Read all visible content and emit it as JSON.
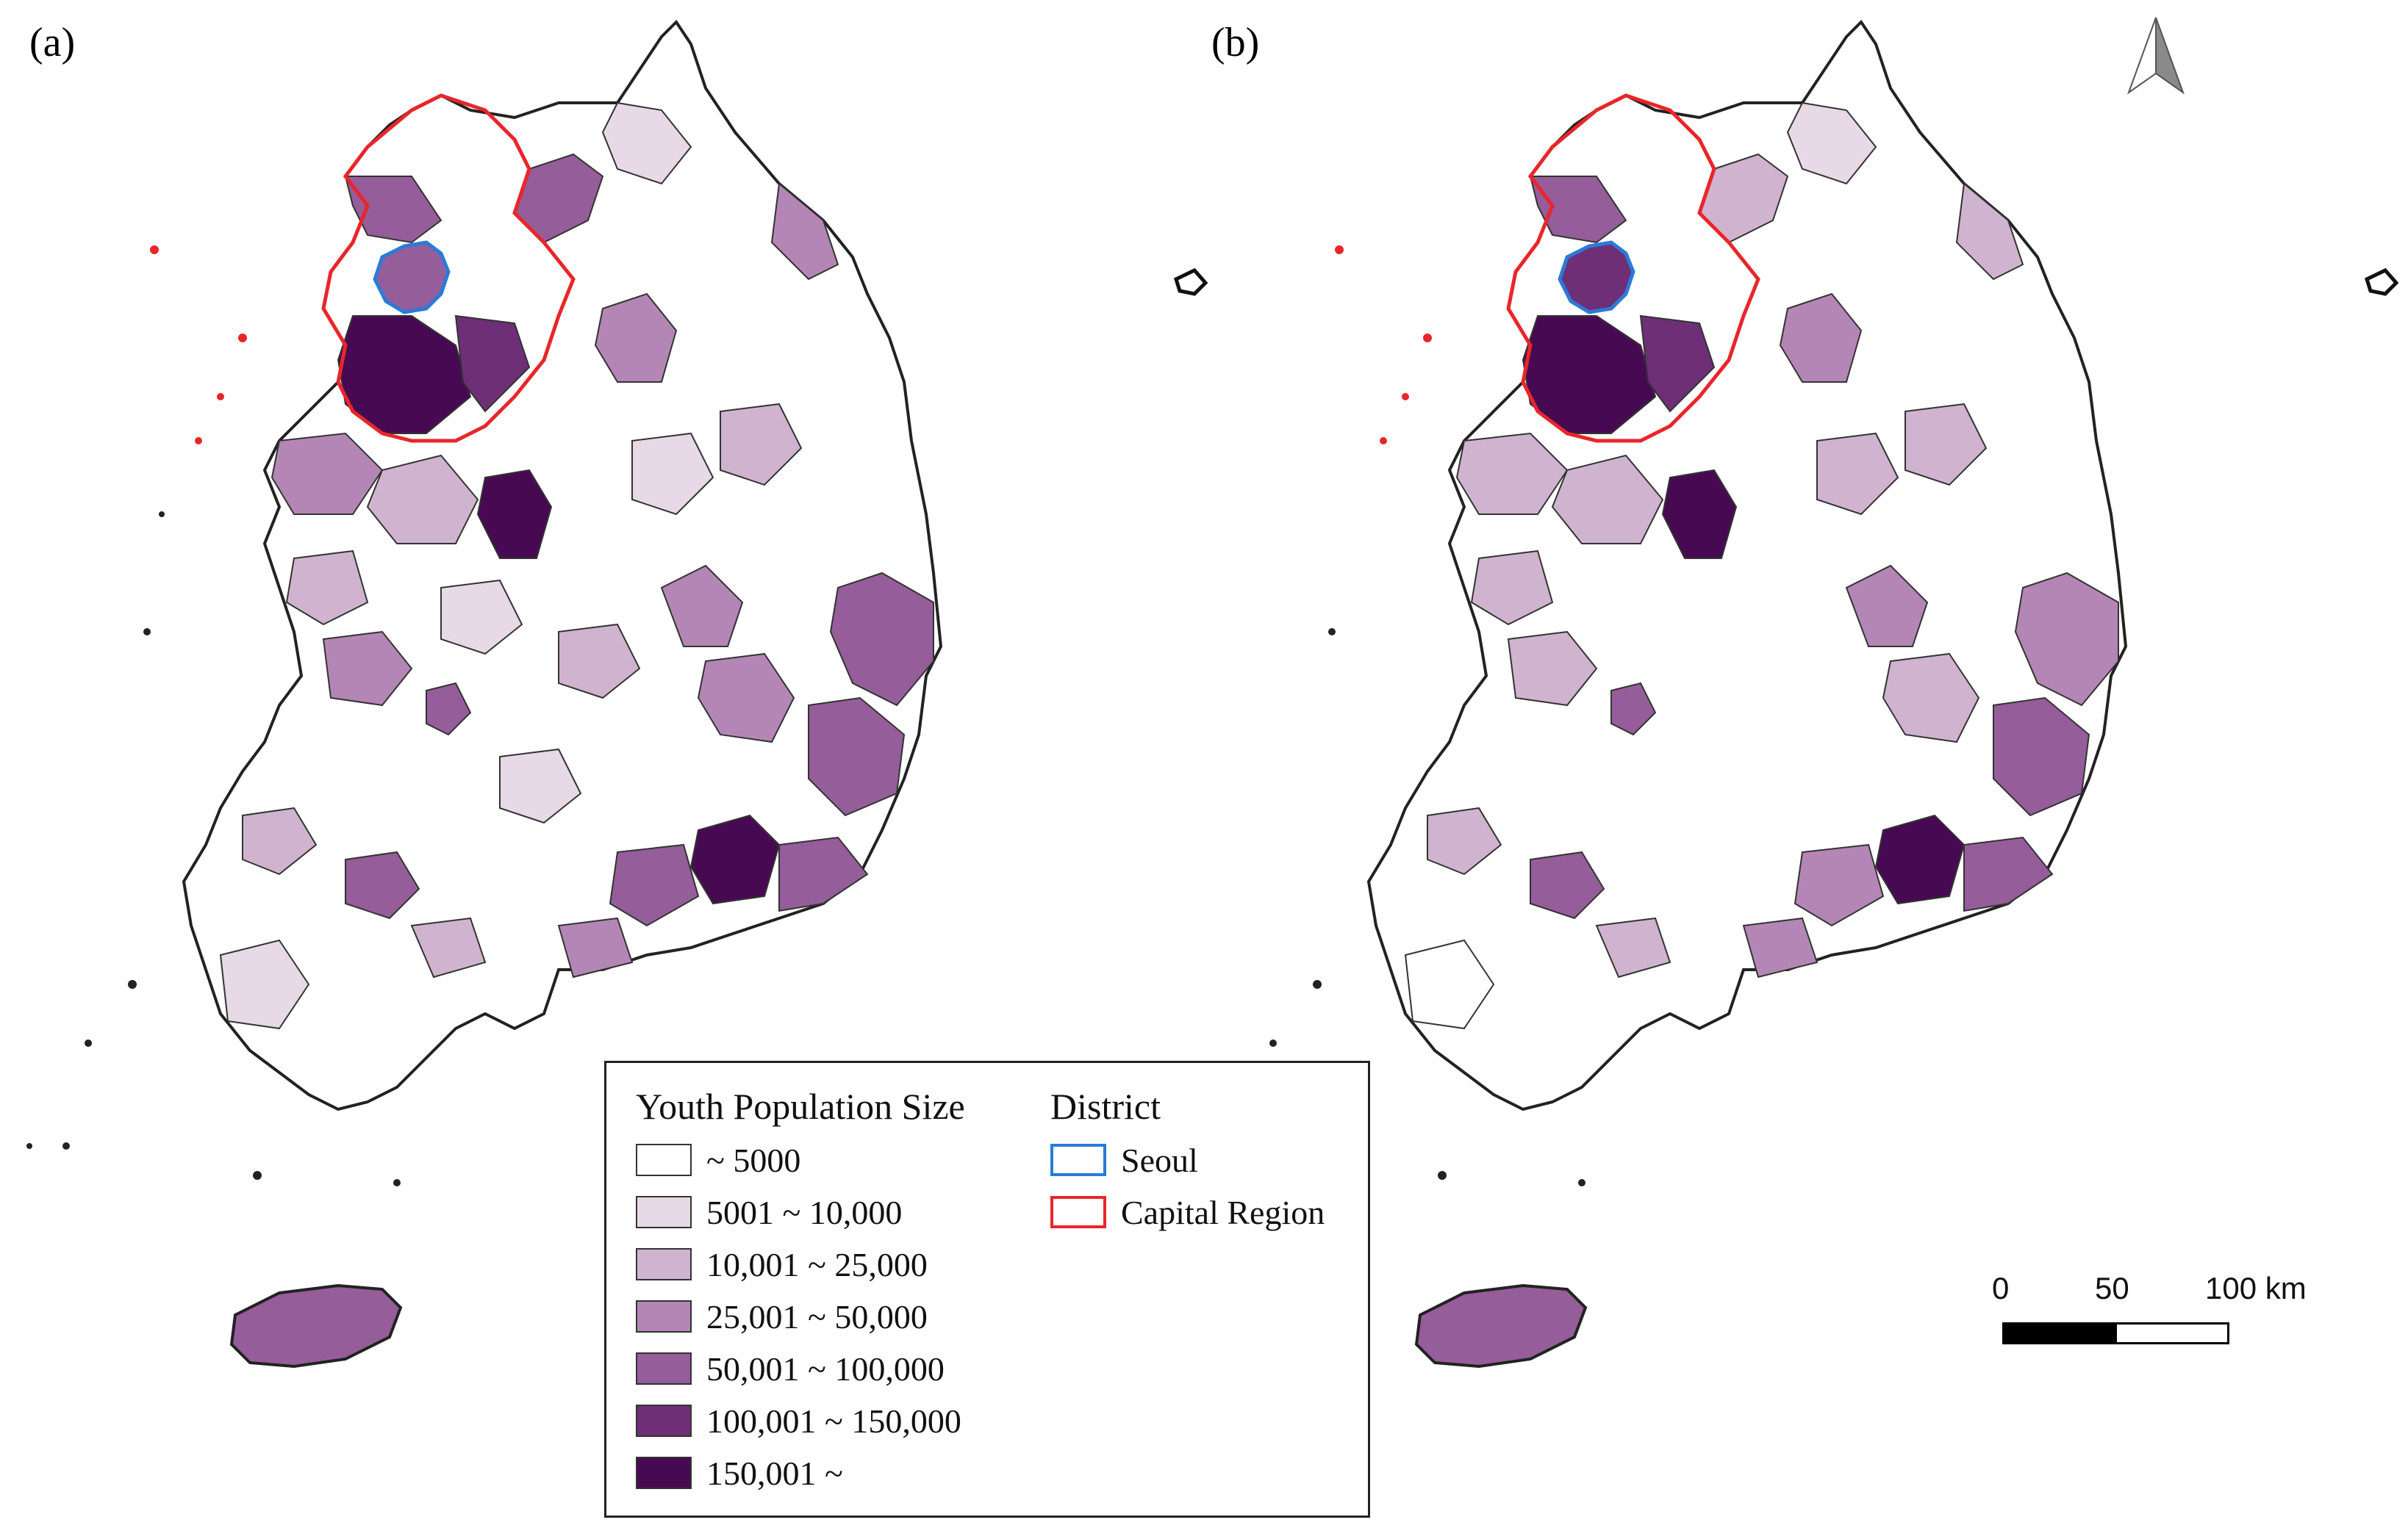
{
  "panels": [
    {
      "label": "(a)"
    },
    {
      "label": "(b)"
    }
  ],
  "legend": {
    "size_title": "Youth Population Size",
    "classes": [
      {
        "label": "~ 5000",
        "color": "#ffffff"
      },
      {
        "label": "5001 ~ 10,000",
        "color": "#e8d9e6"
      },
      {
        "label": "10,001 ~ 25,000",
        "color": "#d0b4cf"
      },
      {
        "label": "25,001 ~ 50,000",
        "color": "#b486b5"
      },
      {
        "label": "50,001 ~ 100,000",
        "color": "#955d99"
      },
      {
        "label": "100,001 ~ 150,000",
        "color": "#6e2f76"
      },
      {
        "label": "150,001 ~",
        "color": "#470a52"
      }
    ],
    "district_title": "District",
    "districts": [
      {
        "label": "Seoul",
        "color": "#2b7bd6"
      },
      {
        "label": "Capital Region",
        "color": "#e8262a"
      }
    ]
  },
  "scale_bar": {
    "ticks": [
      "0",
      "50",
      "100 km"
    ]
  },
  "north_arrow": {
    "icon": "north-arrow-icon"
  }
}
